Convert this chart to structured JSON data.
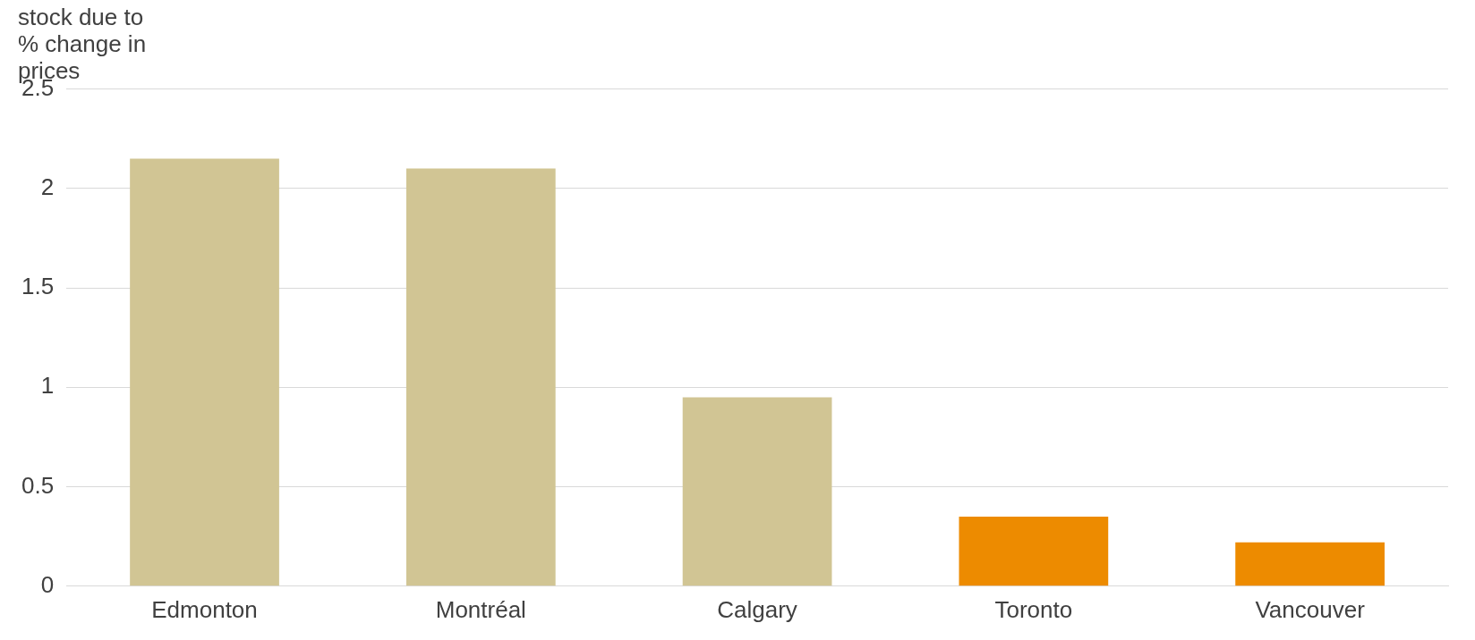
{
  "chart_data": {
    "type": "bar",
    "ylabel": "stock due to % change in prices",
    "categories": [
      "Edmonton",
      "Montréal",
      "Calgary",
      "Toronto",
      "Vancouver"
    ],
    "values": [
      2.15,
      2.1,
      0.95,
      0.35,
      0.22
    ],
    "colors": [
      "#d1c594",
      "#d1c594",
      "#d1c594",
      "#ed8b00",
      "#ed8b00"
    ],
    "ylim": [
      0,
      2.5
    ],
    "yticks": [
      0,
      0.5,
      1,
      1.5,
      2,
      2.5
    ],
    "grid": "y",
    "legend": false
  }
}
